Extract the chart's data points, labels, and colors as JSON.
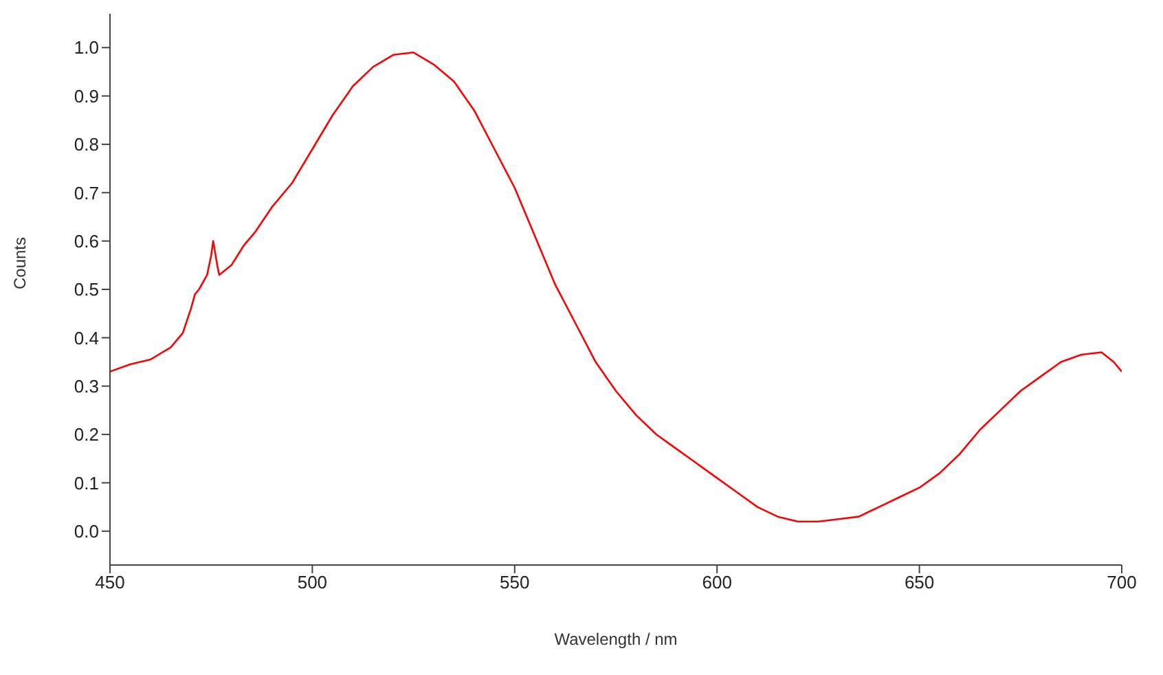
{
  "chart_data": {
    "type": "line",
    "xlabel": "Wavelength / nm",
    "ylabel": "Counts",
    "x": [
      450,
      455,
      460,
      465,
      468,
      470,
      471,
      472,
      474,
      475,
      475.5,
      476.5,
      477,
      480,
      483,
      486,
      490,
      495,
      500,
      505,
      510,
      515,
      520,
      525,
      530,
      535,
      540,
      545,
      550,
      555,
      560,
      565,
      570,
      575,
      580,
      585,
      590,
      595,
      600,
      605,
      610,
      615,
      620,
      625,
      630,
      635,
      640,
      645,
      650,
      655,
      660,
      665,
      670,
      675,
      680,
      685,
      690,
      695,
      698,
      700
    ],
    "series": [
      {
        "color": "#ff0000",
        "values": [
          0.33,
          0.345,
          0.355,
          0.38,
          0.41,
          0.46,
          0.49,
          0.5,
          0.53,
          0.57,
          0.6,
          0.55,
          0.53,
          0.55,
          0.59,
          0.62,
          0.67,
          0.72,
          0.79,
          0.86,
          0.92,
          0.96,
          0.985,
          0.99,
          0.965,
          0.93,
          0.87,
          0.79,
          0.71,
          0.61,
          0.51,
          0.43,
          0.35,
          0.29,
          0.24,
          0.2,
          0.17,
          0.14,
          0.11,
          0.08,
          0.05,
          0.03,
          0.02,
          0.02,
          0.025,
          0.03,
          0.05,
          0.07,
          0.09,
          0.12,
          0.16,
          0.21,
          0.25,
          0.29,
          0.32,
          0.35,
          0.365,
          0.37,
          0.35,
          0.33
        ]
      }
    ],
    "xlim": [
      450,
      700
    ],
    "xticks": [
      450,
      500,
      550,
      600,
      650,
      700
    ],
    "ylim": [
      -0.07,
      1.07
    ],
    "yticks": [
      {
        "value": 0,
        "label": "0.0"
      },
      {
        "value": 0.1,
        "label": "0.1"
      },
      {
        "value": 0.2,
        "label": "0.2"
      },
      {
        "value": 0.3,
        "label": "0.3"
      },
      {
        "value": 0.4,
        "label": "0.4"
      },
      {
        "value": 0.5,
        "label": "0.5"
      },
      {
        "value": 0.6,
        "label": "0.6"
      },
      {
        "value": 0.7,
        "label": "0.7"
      },
      {
        "value": 0.8,
        "label": "0.8"
      },
      {
        "value": 0.9,
        "label": "0.9"
      },
      {
        "value": 1,
        "label": "1.0"
      }
    ],
    "grid": false,
    "marker": "none",
    "line_style": "solid"
  }
}
